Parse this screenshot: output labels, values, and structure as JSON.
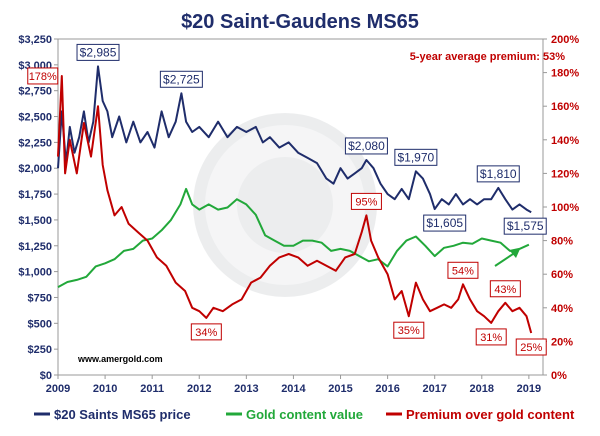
{
  "chart_data": {
    "type": "line",
    "title": "$20 Saint-Gaudens MS65",
    "annotation": "5-year average premium:  53%",
    "watermark": "www.amergold.com",
    "x_ticks": [
      "2009",
      "2010",
      "2011",
      "2012",
      "2013",
      "2014",
      "2015",
      "2016",
      "2017",
      "2018",
      "2019"
    ],
    "xlim": [
      2009,
      2019.3
    ],
    "y_left": {
      "ticks": [
        "$0",
        "$250",
        "$500",
        "$750",
        "$1,000",
        "$1,250",
        "$1,500",
        "$1,750",
        "$2,000",
        "$2,250",
        "$2,500",
        "$2,750",
        "$3,000",
        "$3,250"
      ],
      "ylim": [
        0,
        3250
      ]
    },
    "y_right": {
      "ticks": [
        "0%",
        "20%",
        "40%",
        "60%",
        "80%",
        "100%",
        "120%",
        "140%",
        "160%",
        "180%",
        "200%"
      ],
      "ylim": [
        0,
        200
      ]
    },
    "series": [
      {
        "name": "$20 Saints MS65 price",
        "color": "#1f2d6b",
        "axis": "left",
        "points": [
          [
            2009.0,
            2000
          ],
          [
            2009.08,
            2550
          ],
          [
            2009.17,
            2050
          ],
          [
            2009.25,
            2400
          ],
          [
            2009.35,
            2150
          ],
          [
            2009.45,
            2300
          ],
          [
            2009.55,
            2550
          ],
          [
            2009.65,
            2250
          ],
          [
            2009.75,
            2450
          ],
          [
            2009.85,
            2985
          ],
          [
            2009.95,
            2650
          ],
          [
            2010.05,
            2550
          ],
          [
            2010.15,
            2300
          ],
          [
            2010.3,
            2500
          ],
          [
            2010.45,
            2250
          ],
          [
            2010.6,
            2450
          ],
          [
            2010.75,
            2250
          ],
          [
            2010.9,
            2350
          ],
          [
            2011.05,
            2200
          ],
          [
            2011.2,
            2550
          ],
          [
            2011.35,
            2300
          ],
          [
            2011.5,
            2450
          ],
          [
            2011.62,
            2725
          ],
          [
            2011.72,
            2450
          ],
          [
            2011.85,
            2350
          ],
          [
            2012.0,
            2400
          ],
          [
            2012.2,
            2300
          ],
          [
            2012.4,
            2450
          ],
          [
            2012.6,
            2300
          ],
          [
            2012.8,
            2400
          ],
          [
            2013.0,
            2350
          ],
          [
            2013.2,
            2400
          ],
          [
            2013.35,
            2250
          ],
          [
            2013.5,
            2300
          ],
          [
            2013.7,
            2200
          ],
          [
            2013.9,
            2250
          ],
          [
            2014.1,
            2150
          ],
          [
            2014.3,
            2100
          ],
          [
            2014.5,
            2050
          ],
          [
            2014.7,
            1900
          ],
          [
            2014.85,
            1850
          ],
          [
            2015.0,
            2000
          ],
          [
            2015.15,
            1900
          ],
          [
            2015.3,
            1950
          ],
          [
            2015.45,
            2000
          ],
          [
            2015.55,
            2080
          ],
          [
            2015.7,
            2000
          ],
          [
            2015.85,
            1850
          ],
          [
            2016.0,
            1750
          ],
          [
            2016.15,
            1700
          ],
          [
            2016.3,
            1800
          ],
          [
            2016.45,
            1700
          ],
          [
            2016.6,
            1970
          ],
          [
            2016.75,
            1900
          ],
          [
            2016.9,
            1750
          ],
          [
            2017.0,
            1605
          ],
          [
            2017.15,
            1700
          ],
          [
            2017.3,
            1650
          ],
          [
            2017.45,
            1750
          ],
          [
            2017.6,
            1650
          ],
          [
            2017.75,
            1700
          ],
          [
            2017.9,
            1650
          ],
          [
            2018.05,
            1700
          ],
          [
            2018.2,
            1700
          ],
          [
            2018.35,
            1810
          ],
          [
            2018.5,
            1700
          ],
          [
            2018.65,
            1600
          ],
          [
            2018.8,
            1650
          ],
          [
            2018.95,
            1600
          ],
          [
            2019.05,
            1575
          ]
        ]
      },
      {
        "name": "Gold content value",
        "color": "#22a83a",
        "axis": "left",
        "points": [
          [
            2009.0,
            850
          ],
          [
            2009.2,
            900
          ],
          [
            2009.4,
            920
          ],
          [
            2009.6,
            950
          ],
          [
            2009.8,
            1050
          ],
          [
            2010.0,
            1080
          ],
          [
            2010.2,
            1120
          ],
          [
            2010.4,
            1200
          ],
          [
            2010.6,
            1220
          ],
          [
            2010.8,
            1300
          ],
          [
            2011.0,
            1320
          ],
          [
            2011.2,
            1400
          ],
          [
            2011.4,
            1500
          ],
          [
            2011.6,
            1650
          ],
          [
            2011.72,
            1800
          ],
          [
            2011.85,
            1650
          ],
          [
            2012.0,
            1600
          ],
          [
            2012.2,
            1650
          ],
          [
            2012.4,
            1600
          ],
          [
            2012.6,
            1620
          ],
          [
            2012.8,
            1700
          ],
          [
            2013.0,
            1650
          ],
          [
            2013.2,
            1550
          ],
          [
            2013.4,
            1350
          ],
          [
            2013.6,
            1300
          ],
          [
            2013.8,
            1250
          ],
          [
            2014.0,
            1250
          ],
          [
            2014.2,
            1300
          ],
          [
            2014.4,
            1300
          ],
          [
            2014.6,
            1280
          ],
          [
            2014.8,
            1200
          ],
          [
            2015.0,
            1220
          ],
          [
            2015.2,
            1200
          ],
          [
            2015.4,
            1150
          ],
          [
            2015.6,
            1100
          ],
          [
            2015.8,
            1120
          ],
          [
            2016.0,
            1050
          ],
          [
            2016.2,
            1200
          ],
          [
            2016.4,
            1300
          ],
          [
            2016.6,
            1340
          ],
          [
            2016.8,
            1250
          ],
          [
            2017.0,
            1150
          ],
          [
            2017.2,
            1230
          ],
          [
            2017.4,
            1250
          ],
          [
            2017.6,
            1280
          ],
          [
            2017.8,
            1270
          ],
          [
            2018.0,
            1320
          ],
          [
            2018.2,
            1300
          ],
          [
            2018.4,
            1280
          ],
          [
            2018.6,
            1200
          ],
          [
            2018.8,
            1220
          ],
          [
            2019.0,
            1260
          ]
        ]
      },
      {
        "name": "Premium over gold content",
        "color": "#c00000",
        "axis": "right",
        "points": [
          [
            2009.0,
            130
          ],
          [
            2009.08,
            178
          ],
          [
            2009.15,
            120
          ],
          [
            2009.25,
            140
          ],
          [
            2009.4,
            120
          ],
          [
            2009.55,
            150
          ],
          [
            2009.7,
            130
          ],
          [
            2009.85,
            160
          ],
          [
            2009.95,
            125
          ],
          [
            2010.05,
            110
          ],
          [
            2010.2,
            95
          ],
          [
            2010.35,
            100
          ],
          [
            2010.5,
            90
          ],
          [
            2010.7,
            85
          ],
          [
            2010.9,
            80
          ],
          [
            2011.1,
            70
          ],
          [
            2011.3,
            65
          ],
          [
            2011.5,
            55
          ],
          [
            2011.7,
            50
          ],
          [
            2011.85,
            40
          ],
          [
            2012.0,
            38
          ],
          [
            2012.15,
            34
          ],
          [
            2012.3,
            40
          ],
          [
            2012.5,
            38
          ],
          [
            2012.7,
            42
          ],
          [
            2012.9,
            45
          ],
          [
            2013.1,
            55
          ],
          [
            2013.3,
            58
          ],
          [
            2013.5,
            65
          ],
          [
            2013.7,
            70
          ],
          [
            2013.9,
            72
          ],
          [
            2014.1,
            70
          ],
          [
            2014.3,
            65
          ],
          [
            2014.5,
            68
          ],
          [
            2014.7,
            65
          ],
          [
            2014.9,
            62
          ],
          [
            2015.1,
            70
          ],
          [
            2015.3,
            72
          ],
          [
            2015.45,
            85
          ],
          [
            2015.55,
            95
          ],
          [
            2015.65,
            80
          ],
          [
            2015.8,
            70
          ],
          [
            2016.0,
            60
          ],
          [
            2016.15,
            45
          ],
          [
            2016.3,
            50
          ],
          [
            2016.45,
            35
          ],
          [
            2016.6,
            55
          ],
          [
            2016.75,
            45
          ],
          [
            2016.9,
            38
          ],
          [
            2017.05,
            40
          ],
          [
            2017.2,
            42
          ],
          [
            2017.35,
            40
          ],
          [
            2017.5,
            45
          ],
          [
            2017.6,
            54
          ],
          [
            2017.75,
            45
          ],
          [
            2017.9,
            38
          ],
          [
            2018.05,
            35
          ],
          [
            2018.2,
            31
          ],
          [
            2018.35,
            38
          ],
          [
            2018.5,
            43
          ],
          [
            2018.65,
            38
          ],
          [
            2018.8,
            40
          ],
          [
            2018.95,
            35
          ],
          [
            2019.05,
            25
          ]
        ]
      }
    ],
    "labels": [
      {
        "text": "$2,985",
        "series": 0,
        "x": 2009.85,
        "y": 2985
      },
      {
        "text": "$2,725",
        "series": 0,
        "x": 2011.62,
        "y": 2725
      },
      {
        "text": "$2,080",
        "series": 0,
        "x": 2015.55,
        "y": 2080
      },
      {
        "text": "$1,970",
        "series": 0,
        "x": 2016.6,
        "y": 1970
      },
      {
        "text": "$1,605",
        "series": 0,
        "x": 2017.0,
        "y": 1605
      },
      {
        "text": "$1,810",
        "series": 0,
        "x": 2018.35,
        "y": 1810
      },
      {
        "text": "$1,575",
        "series": 0,
        "x": 2019.05,
        "y": 1575
      },
      {
        "text": "178%",
        "series": 2,
        "x": 2009.08,
        "y": 178
      },
      {
        "text": "34%",
        "series": 2,
        "x": 2012.15,
        "y": 34
      },
      {
        "text": "95%",
        "series": 2,
        "x": 2015.55,
        "y": 95
      },
      {
        "text": "35%",
        "series": 2,
        "x": 2016.45,
        "y": 35
      },
      {
        "text": "54%",
        "series": 2,
        "x": 2017.6,
        "y": 54
      },
      {
        "text": "31%",
        "series": 2,
        "x": 2018.2,
        "y": 31
      },
      {
        "text": "43%",
        "series": 2,
        "x": 2018.5,
        "y": 43
      },
      {
        "text": "25%",
        "series": 2,
        "x": 2019.05,
        "y": 25
      }
    ],
    "grid": false,
    "legend_position": "bottom"
  }
}
